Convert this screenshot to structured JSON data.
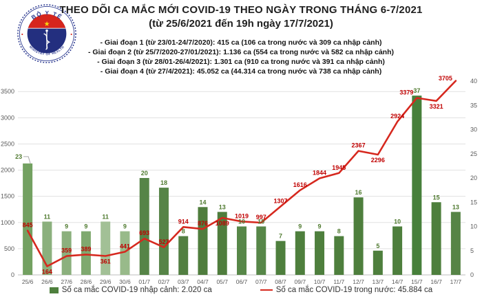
{
  "header": {
    "title": "THEO DÕI CA MẮC MỚI COVID-19 THEO NGÀY TRONG THÁNG 6-7/2021",
    "subtitle": "(từ 25/6/2021 đến 19h ngày 17/7/2021)",
    "logo": {
      "top_text": "BỘ Y TẾ",
      "bottom_text": "MINISTRY OF HEALTH"
    },
    "bullets": [
      "- Giai đoạn 1 (từ 23/01-24/7/2020): 415 ca (106 ca trong nước và 309 ca nhập cảnh)",
      "- Giai đoạn 2 (từ 25/7/2020-27/01/2021): 1.136 ca (554 ca trong nước và 582 ca nhập cảnh)",
      "- Giai đoạn 3 (từ 28/01-26/4/2021): 1.301 ca (910 ca trong nước và 391 ca nhập cảnh)",
      "- Giai đoạn 4 (từ 27/4/2021): 45.052 ca (44.314 ca trong nước và 738 ca nhập cảnh)"
    ]
  },
  "chart_data": {
    "type": "combo",
    "categories": [
      "25/6",
      "26/6",
      "27/6",
      "28/6",
      "29/6",
      "30/6",
      "01/7",
      "02/7",
      "03/7",
      "04/7",
      "05/7",
      "06/7",
      "07/7",
      "08/7",
      "09/7",
      "10/7",
      "11/7",
      "12/7",
      "13/7",
      "14/7",
      "15/7",
      "16/7",
      "17/7"
    ],
    "series": [
      {
        "name": "Số ca mắc COVID-19 nhập cảnh: 2.020 ca",
        "type": "bar",
        "axis": "right",
        "values": [
          23,
          11,
          9,
          9,
          11,
          9,
          20,
          18,
          8,
          14,
          13,
          10,
          10,
          7,
          9,
          9,
          8,
          16,
          5,
          10,
          37,
          15,
          13
        ],
        "bar_colors": [
          "#73a161",
          "#8bb07d",
          "#8bb07d",
          "#7fa96f",
          "#a2c096",
          "#98ba8a",
          "#568447",
          "#568447",
          "#527f41",
          "#4f7d3d",
          "#4f7d3d",
          "#578748",
          "#578748",
          "#4e7f3d",
          "#4e7f3d",
          "#4e7f3d",
          "#4e7f3d",
          "#4e7f3d",
          "#4e7f3d",
          "#4e7f3d",
          "#47803b",
          "#4e7f3d",
          "#568446"
        ],
        "label_color": "#4f7a2f",
        "callout": {
          "index": 0,
          "dx": -13,
          "dy": -7
        }
      },
      {
        "name": "Số ca mắc COVID-19 trong nước: 45.884 ca",
        "type": "line",
        "axis": "left",
        "values": [
          845,
          164,
          359,
          389,
          361,
          441,
          693,
          527,
          914,
          876,
          1089,
          1019,
          997,
          1307,
          1616,
          1844,
          1945,
          2367,
          2296,
          2924,
          3379,
          3321,
          3705
        ],
        "label_pos": [
          "above",
          "below",
          "above",
          "above",
          "below",
          "above",
          "above",
          "above",
          "above",
          "above",
          "below",
          "above",
          "above",
          "above",
          "above",
          "above",
          "above",
          "above",
          "below",
          "above",
          "above-left",
          "below",
          "above-left"
        ],
        "color": "#d6281e",
        "label_color": "#c00000"
      }
    ],
    "left_axis": {
      "max": 3700,
      "ticks": [
        0,
        500,
        1000,
        1500,
        2000,
        2500,
        3000,
        3500
      ]
    },
    "right_axis": {
      "max": 40,
      "ticks": [
        0,
        5,
        10,
        15,
        20,
        25,
        30,
        35,
        40
      ]
    },
    "grid_color": "#e1e1e1",
    "axis_line_color": "#bdbdbd",
    "axis_text_color": "#595959",
    "legend_position": "bottom"
  }
}
